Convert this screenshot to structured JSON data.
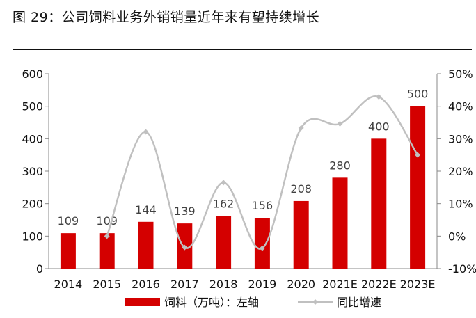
{
  "figure": {
    "title": "图 29：公司饲料业务外销销量近年来有望持续增长"
  },
  "chart_data": {
    "type": "bar",
    "categories": [
      "2014",
      "2015",
      "2016",
      "2017",
      "2018",
      "2019",
      "2020",
      "2021E",
      "2022E",
      "2023E"
    ],
    "series": [
      {
        "name": "饲料（万吨）：左轴",
        "type": "bar",
        "axis": "left",
        "color": "#d40000",
        "values": [
          109,
          109,
          144,
          139,
          162,
          156,
          208,
          280,
          400,
          500
        ],
        "data_labels": [
          "109",
          "109",
          "144",
          "139",
          "162",
          "156",
          "208",
          "280",
          "400",
          "500"
        ]
      },
      {
        "name": "同比增速",
        "type": "line",
        "axis": "right",
        "smooth": true,
        "color": "#c0c0c0",
        "values": [
          null,
          0.0,
          32.1,
          -3.5,
          16.5,
          -3.7,
          33.3,
          34.6,
          42.9,
          25.0
        ]
      }
    ],
    "left_axis": {
      "ylim": [
        0,
        600
      ],
      "ticks": [
        "0",
        "100",
        "200",
        "300",
        "400",
        "500",
        "600"
      ]
    },
    "right_axis": {
      "ylim": [
        -10,
        50
      ],
      "ticks": [
        "-10%",
        "0%",
        "10%",
        "20%",
        "30%",
        "40%",
        "50%"
      ]
    },
    "grid": false,
    "legend": {
      "position": "bottom",
      "items": [
        {
          "label": "饲料（万吨）：左轴",
          "marker": "bar",
          "color": "#d40000"
        },
        {
          "label": "同比增速",
          "marker": "line",
          "color": "#c0c0c0"
        }
      ]
    }
  }
}
